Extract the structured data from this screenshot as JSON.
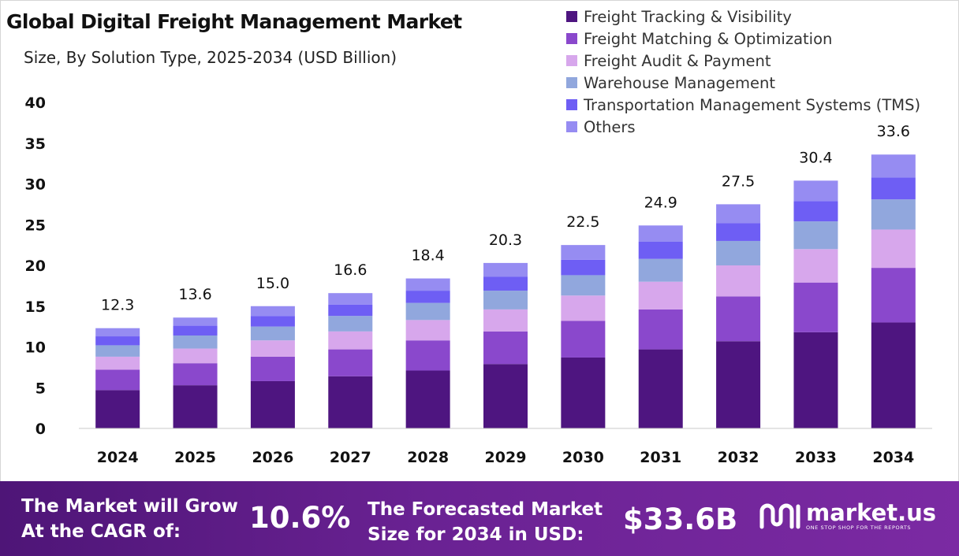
{
  "title": "Global Digital Freight Management Market",
  "subtitle": "Size, By Solution Type, 2025-2034 (USD Billion)",
  "colors": {
    "segments": [
      "#4e1580",
      "#8a48cc",
      "#d7a7ec",
      "#91a7dd",
      "#6e5ef4",
      "#968cf2"
    ],
    "banner": "#6a2293",
    "label": "#111111"
  },
  "chart_data": {
    "type": "bar",
    "stacked": true,
    "categories": [
      "2024",
      "2025",
      "2026",
      "2027",
      "2028",
      "2029",
      "2030",
      "2031",
      "2032",
      "2033",
      "2034"
    ],
    "totals": [
      "12.3",
      "13.6",
      "15.0",
      "16.6",
      "18.4",
      "20.3",
      "22.5",
      "24.9",
      "27.5",
      "30.4",
      "33.6"
    ],
    "series": [
      {
        "name": "Freight Tracking & Visibility",
        "values": [
          4.7,
          5.3,
          5.8,
          6.4,
          7.1,
          7.9,
          8.7,
          9.7,
          10.7,
          11.8,
          13.0
        ]
      },
      {
        "name": "Freight Matching & Optimization",
        "values": [
          2.5,
          2.7,
          3.0,
          3.3,
          3.7,
          4.0,
          4.5,
          4.9,
          5.5,
          6.1,
          6.7
        ]
      },
      {
        "name": "Freight Audit & Payment",
        "values": [
          1.6,
          1.8,
          2.0,
          2.2,
          2.5,
          2.7,
          3.1,
          3.4,
          3.8,
          4.1,
          4.7
        ]
      },
      {
        "name": "Warehouse Management",
        "values": [
          1.4,
          1.6,
          1.7,
          1.9,
          2.1,
          2.3,
          2.5,
          2.8,
          3.0,
          3.4,
          3.7
        ]
      },
      {
        "name": "Transportation Management Systems (TMS)",
        "values": [
          1.1,
          1.2,
          1.3,
          1.4,
          1.5,
          1.7,
          1.9,
          2.1,
          2.2,
          2.5,
          2.7
        ]
      },
      {
        "name": "Others",
        "values": [
          1.0,
          1.0,
          1.2,
          1.4,
          1.5,
          1.7,
          1.8,
          2.0,
          2.3,
          2.5,
          2.8
        ]
      }
    ],
    "yticks": [
      "0",
      "5",
      "10",
      "15",
      "20",
      "25",
      "30",
      "35",
      "40"
    ],
    "ylim": [
      0,
      40
    ],
    "grid": false,
    "legend_position": "top-right"
  },
  "banner": {
    "cagr_label_line1": "The Market will Grow",
    "cagr_label_line2": "At the CAGR of:",
    "cagr_value": "10.6%",
    "forecast_label_line1": "The Forecasted Market",
    "forecast_label_line2": "Size for 2034 in USD:",
    "forecast_value": "$33.6B",
    "logo_name": "market.us",
    "logo_tagline": "ONE STOP SHOP FOR THE REPORTS"
  }
}
